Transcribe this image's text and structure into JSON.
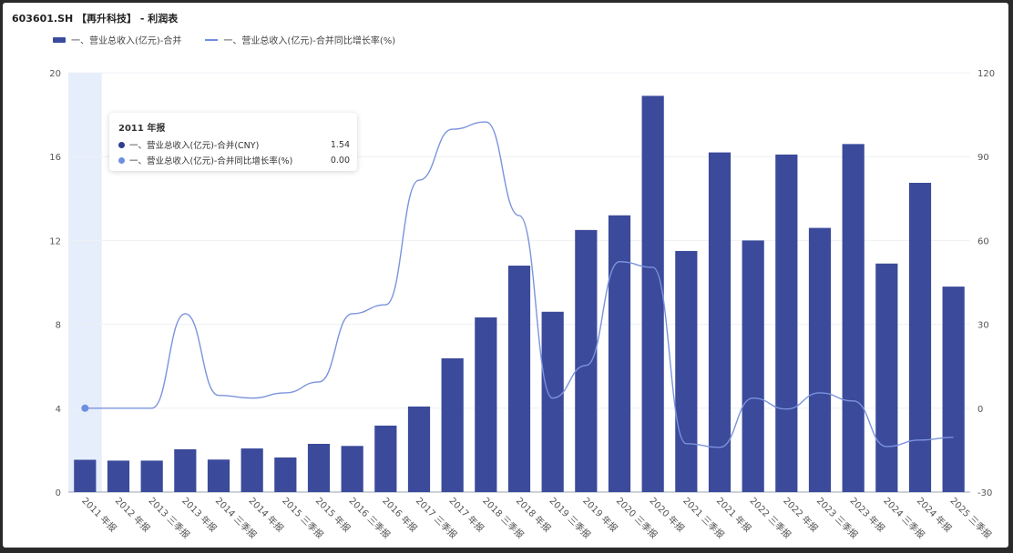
{
  "title": "603601.SH 【再升科技】 - 利润表",
  "legend": [
    "一、营业总收入(亿元)-合并",
    "一、营业总收入(亿元)-合并同比增长率(%)"
  ],
  "tooltip": {
    "title": "2011 年报",
    "rows": [
      {
        "label": "一、营业总收入(亿元)-合并(CNY)",
        "value": "1.54",
        "color": "#2f3f8f"
      },
      {
        "label": "一、营业总收入(亿元)-合并同比增长率(%)",
        "value": "0.00",
        "color": "#6e8ee0"
      }
    ]
  },
  "colors": {
    "bar": "#3b4a9a",
    "line": "#7b93dc",
    "highlight": "#e6eefc"
  },
  "chart_data": {
    "type": "bar+line",
    "title": "603601.SH 【再升科技】 - 利润表",
    "categories": [
      "2011 年报",
      "2012 年报",
      "2013 三季报",
      "2013 年报",
      "2014 三季报",
      "2014 年报",
      "2015 三季报",
      "2015 年报",
      "2016 三季报",
      "2016 年报",
      "2017 三季报",
      "2017 年报",
      "2018 三季报",
      "2018 年报",
      "2019 三季报",
      "2019 年报",
      "2020 三季报",
      "2020 年报",
      "2021 三季报",
      "2021 年报",
      "2022 三季报",
      "2022 年报",
      "2023 三季报",
      "2023 年报",
      "2024 三季报",
      "2024 年报",
      "2025 三季报"
    ],
    "series": [
      {
        "name": "一、营业总收入(亿元)-合并",
        "type": "bar",
        "axis": "left",
        "values": [
          1.54,
          1.5,
          1.5,
          2.04,
          1.55,
          2.08,
          1.65,
          2.3,
          2.2,
          3.17,
          4.08,
          6.38,
          8.33,
          10.8,
          8.6,
          12.5,
          13.2,
          18.9,
          11.5,
          16.2,
          12.0,
          16.1,
          12.6,
          16.6,
          10.9,
          14.75,
          9.8
        ]
      },
      {
        "name": "一、营业总收入(亿元)-合并同比增长率(%)",
        "type": "line",
        "axis": "right",
        "values": [
          0,
          0,
          0,
          33.8,
          4.6,
          3.6,
          5.5,
          9.4,
          33.8,
          37,
          81.6,
          99.8,
          102.4,
          68.9,
          3.6,
          15.3,
          52.4,
          50.4,
          -12.7,
          -14,
          3.6,
          -0.3,
          5.5,
          2.6,
          -13.7,
          -11.4,
          -10.4
        ]
      }
    ],
    "yleft": {
      "ticks": [
        "0",
        "4",
        "8",
        "12",
        "16",
        "20"
      ],
      "range": [
        0,
        20
      ]
    },
    "yright": {
      "ticks": [
        "-30",
        "0",
        "30",
        "60",
        "90",
        "120"
      ],
      "range": [
        -30,
        120
      ]
    },
    "highlight_index": 0,
    "legend_position": "top-left",
    "grid": true
  }
}
